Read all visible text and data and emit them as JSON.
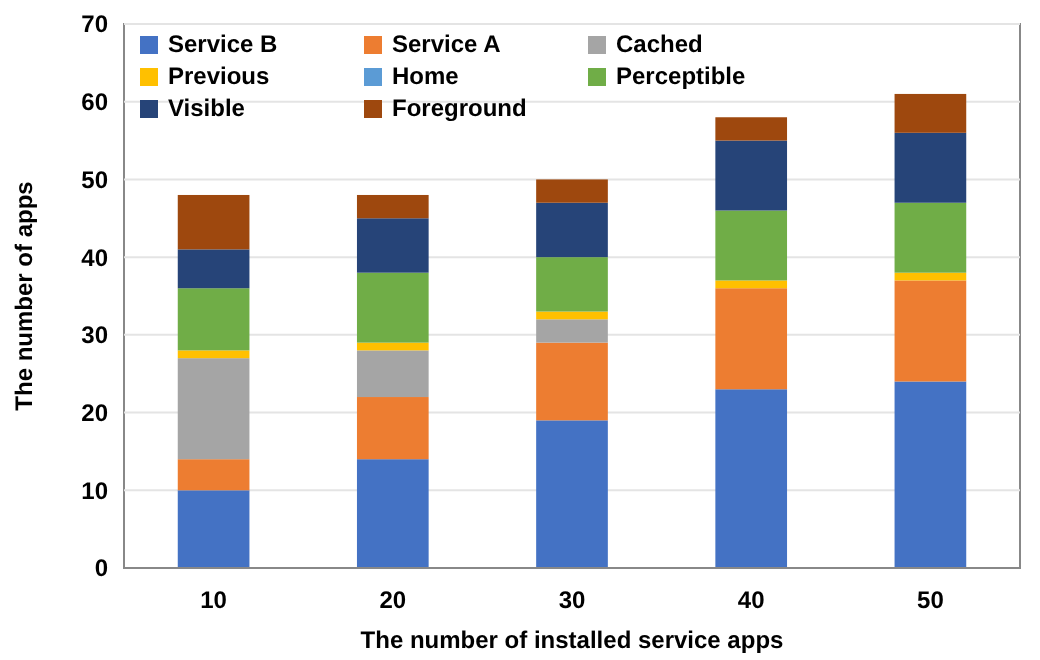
{
  "chart_data": {
    "type": "bar",
    "stacked": true,
    "xlabel": "The number of installed service apps",
    "ylabel": "The number of apps",
    "categories": [
      "10",
      "20",
      "30",
      "40",
      "50"
    ],
    "ylim": [
      0,
      70
    ],
    "yticks": [
      0,
      10,
      20,
      30,
      40,
      50,
      60,
      70
    ],
    "grid": "y",
    "legend": "top left",
    "series": [
      {
        "name": "Service B",
        "color": "#4472c4",
        "values": [
          10,
          14,
          19,
          23,
          24
        ]
      },
      {
        "name": "Service A",
        "color": "#ed7d31",
        "values": [
          4,
          8,
          10,
          13,
          13
        ]
      },
      {
        "name": "Cached",
        "color": "#a5a5a5",
        "values": [
          13,
          6,
          3,
          0,
          0
        ]
      },
      {
        "name": "Previous",
        "color": "#ffc000",
        "values": [
          1,
          1,
          1,
          1,
          1
        ]
      },
      {
        "name": "Home",
        "color": "#5b9bd5",
        "values": [
          0,
          0,
          0,
          0,
          0
        ]
      },
      {
        "name": "Perceptible",
        "color": "#70ad47",
        "values": [
          8,
          9,
          7,
          9,
          9
        ]
      },
      {
        "name": "Visible",
        "color": "#264478",
        "values": [
          5,
          7,
          7,
          9,
          9
        ]
      },
      {
        "name": "Foreground",
        "color": "#9e480e",
        "values": [
          7,
          3,
          3,
          3,
          5
        ]
      }
    ]
  }
}
